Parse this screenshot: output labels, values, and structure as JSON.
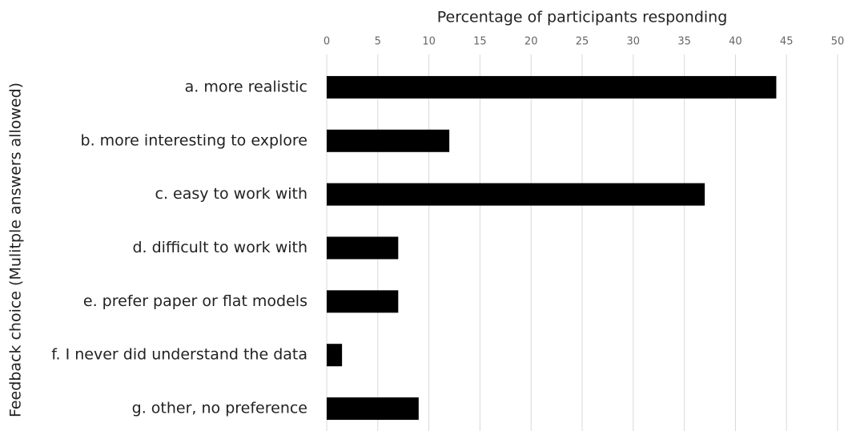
{
  "chart_data": {
    "type": "bar",
    "x_label": "Percentage of participants responding",
    "y_label": "Feedback choice (Mulitple answers allowed)",
    "categories": [
      "a. more realistic",
      "b. more interesting to explore",
      "c. easy to work with",
      "d. difficult to work with",
      "e. prefer paper or flat models",
      "f.  I never did understand the data",
      "g. other, no preference"
    ],
    "values": [
      44,
      12,
      37,
      7,
      7,
      1.5,
      9
    ],
    "color": "#000000",
    "xlim": [
      0,
      50
    ],
    "xticks": [
      0,
      5,
      10,
      15,
      20,
      25,
      30,
      35,
      40,
      45,
      50
    ],
    "grid": true
  }
}
